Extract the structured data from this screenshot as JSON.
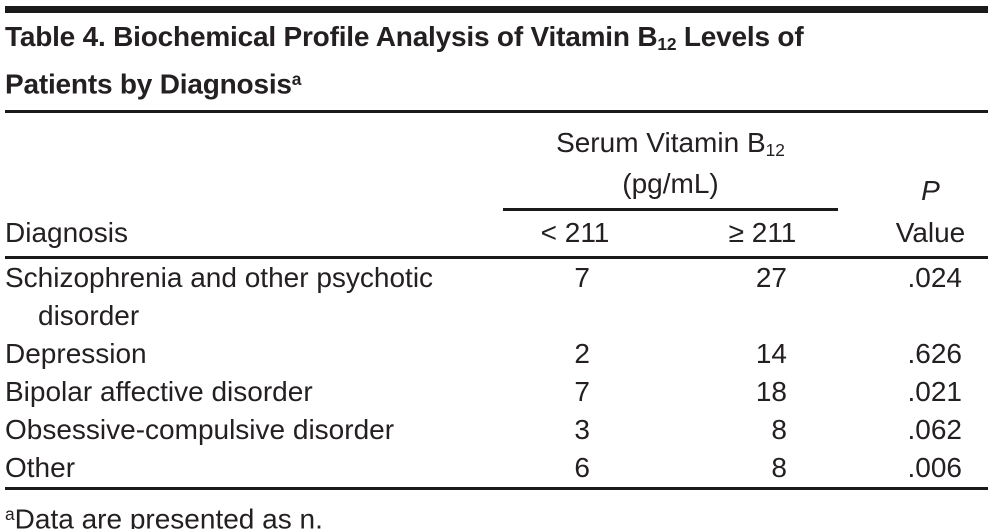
{
  "colors": {
    "background": "#ffffff",
    "rule": "#1a1a1a",
    "text": "#242021"
  },
  "title": {
    "line1_pre": "Table 4. Biochemical Profile Analysis of Vitamin B",
    "subscript": "12",
    "line1_post": " Levels of",
    "line2": "Patients by Diagnosis",
    "footnote_marker": "a"
  },
  "header": {
    "diagnosis": "Diagnosis",
    "spanner_pre": "Serum Vitamin B",
    "spanner_sub": "12",
    "spanner_unit": "(pg/mL)",
    "col_lt": "< 211",
    "col_gte": "≥ 211",
    "p_line1": "P",
    "p_line2": "Value"
  },
  "rows": [
    {
      "diagnosis": "Schizophrenia and other psychotic",
      "diagnosis_line2": "disorder",
      "lt211": "7",
      "gte211": "27",
      "p_value": ".024"
    },
    {
      "diagnosis": "Depression",
      "lt211": "2",
      "gte211": "14",
      "p_value": ".626"
    },
    {
      "diagnosis": "Bipolar affective disorder",
      "lt211": "7",
      "gte211": "18",
      "p_value": ".021"
    },
    {
      "diagnosis": "Obsessive-compulsive disorder",
      "lt211": "3",
      "gte211": "8",
      "p_value": ".062"
    },
    {
      "diagnosis": "Other",
      "lt211": "6",
      "gte211": "8",
      "p_value": ".006"
    }
  ],
  "footnote": {
    "marker": "a",
    "text": "Data are presented as n."
  }
}
